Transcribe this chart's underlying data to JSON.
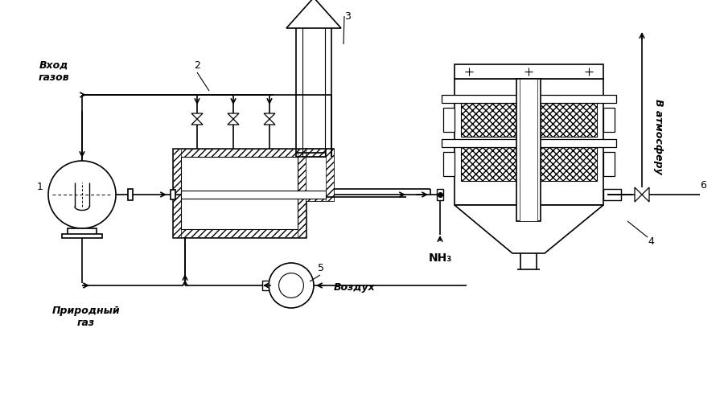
{
  "bg_color": "#ffffff",
  "lc": "#000000",
  "labels": {
    "vhod": "Вход\nгазов",
    "prirodny": "Природный\nгаз",
    "vozduh": "Воздух",
    "atmosfera": "В атмосферу",
    "nh3": "NH₃",
    "num1": "1",
    "num2": "2",
    "num3": "3",
    "num4": "4",
    "num5": "5",
    "num6": "6"
  }
}
